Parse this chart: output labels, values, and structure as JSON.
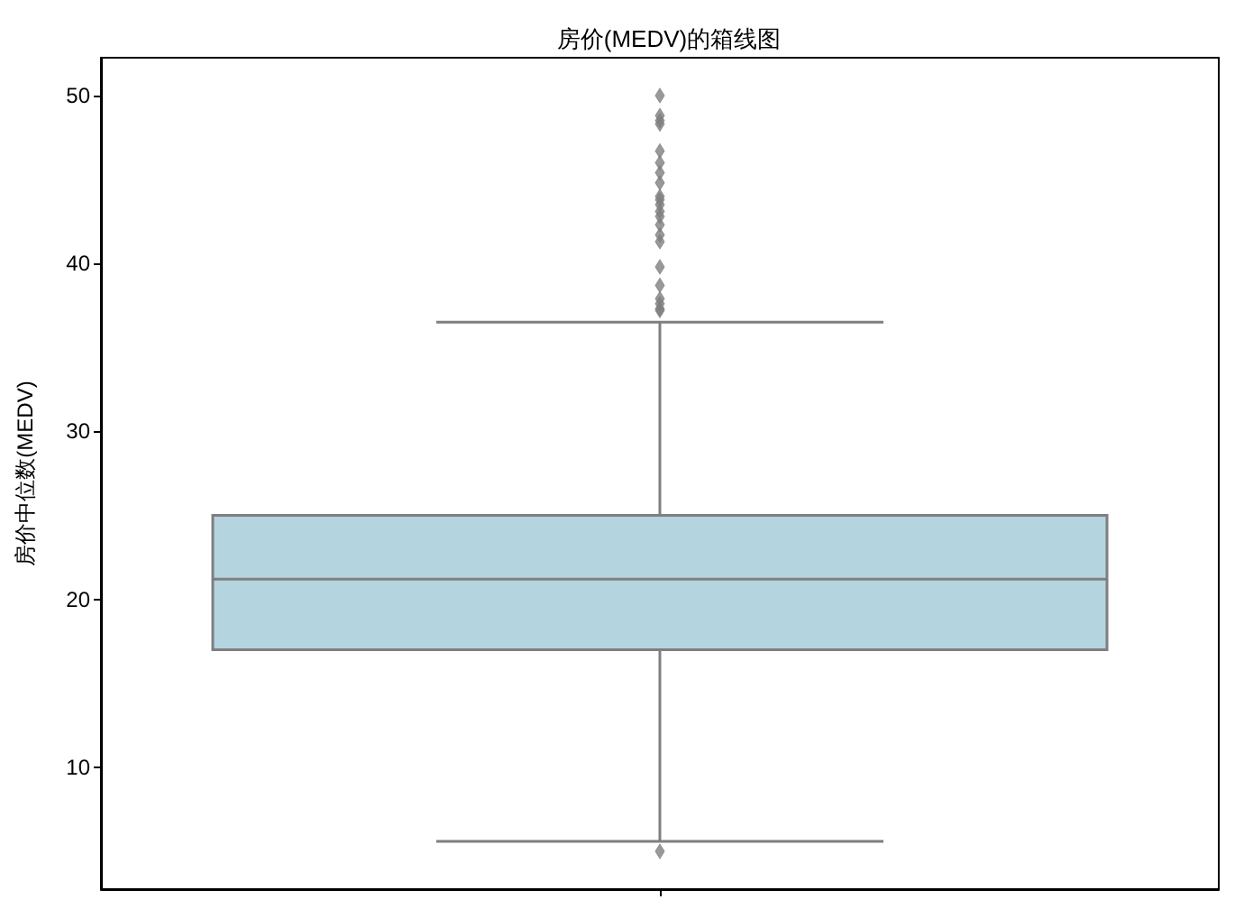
{
  "chart_data": {
    "type": "box",
    "title": "房价(MEDV)的箱线图",
    "ylabel": "房价中位数(MEDV)",
    "categories": [
      null
    ],
    "series": [
      {
        "color": "#b4d4e0",
        "boxes": [
          {
            "low": 5.6,
            "q1": 17.0,
            "median": 21.2,
            "q3": 25.0,
            "high": 36.5,
            "outliers": [
              5.0,
              37.2,
              37.3,
              37.6,
              37.9,
              38.7,
              39.8,
              41.3,
              41.7,
              42.3,
              42.8,
              43.1,
              43.5,
              43.8,
              44.0,
              44.8,
              45.4,
              46.0,
              46.7,
              48.3,
              48.5,
              48.8,
              50.0
            ]
          }
        ]
      }
    ],
    "ylim": [
      2.75,
      52.25
    ],
    "yticks": [
      10,
      20,
      30,
      40,
      50
    ],
    "grid": false,
    "marker": "diamond"
  }
}
